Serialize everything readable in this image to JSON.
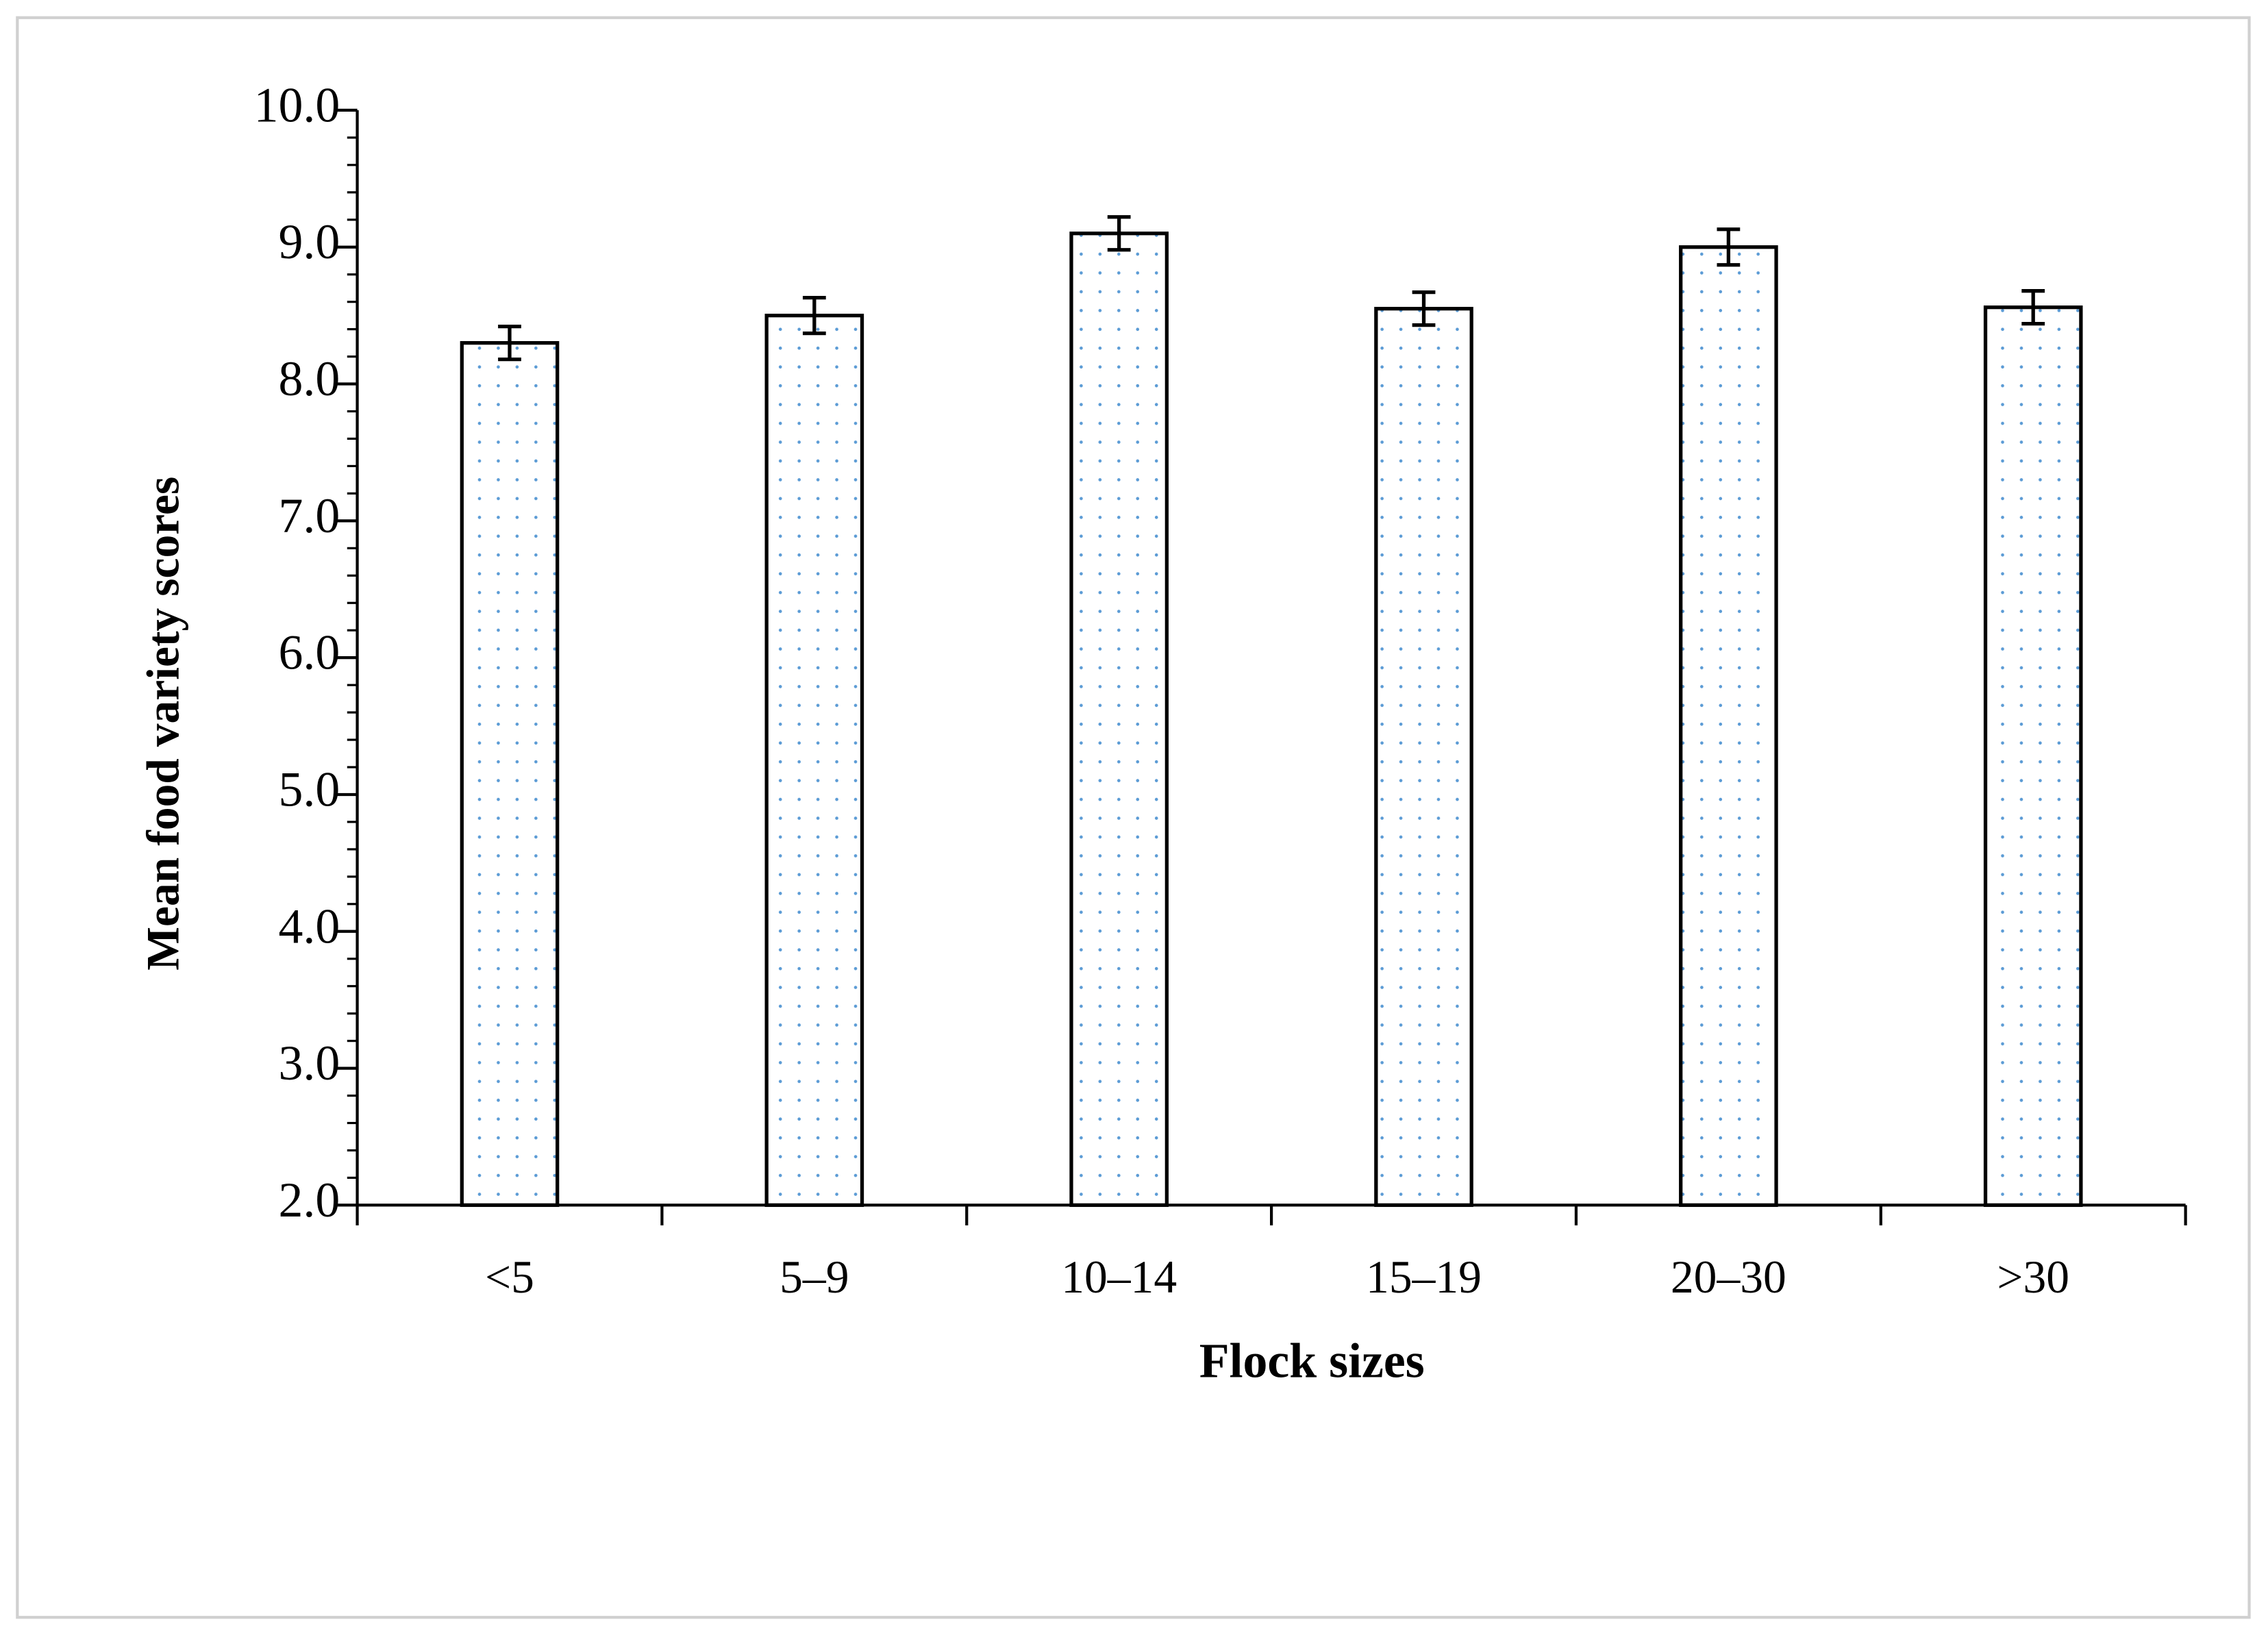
{
  "chart_data": {
    "type": "bar",
    "x_label": "Flock sizes",
    "y_label": "Mean food variety scores",
    "categories": [
      "<5",
      "5–9",
      "10–14",
      "15–19",
      "20–30",
      ">30"
    ],
    "values": [
      8.3,
      8.5,
      9.1,
      8.55,
      9.0,
      8.56
    ],
    "errors": [
      0.12,
      0.13,
      0.12,
      0.12,
      0.13,
      0.12
    ],
    "color": "#5b9bd5",
    "ylim": [
      2,
      10
    ],
    "yticks": [
      {
        "value": 2,
        "label": "2.0"
      },
      {
        "value": 3,
        "label": "3.0"
      },
      {
        "value": 4,
        "label": "4.0"
      },
      {
        "value": 5,
        "label": "5.0"
      },
      {
        "value": 6,
        "label": "6.0"
      },
      {
        "value": 7,
        "label": "7.0"
      },
      {
        "value": 8,
        "label": "8.0"
      },
      {
        "value": 9,
        "label": "9.0"
      },
      {
        "value": 10,
        "label": "10.0"
      }
    ],
    "grid": false
  }
}
